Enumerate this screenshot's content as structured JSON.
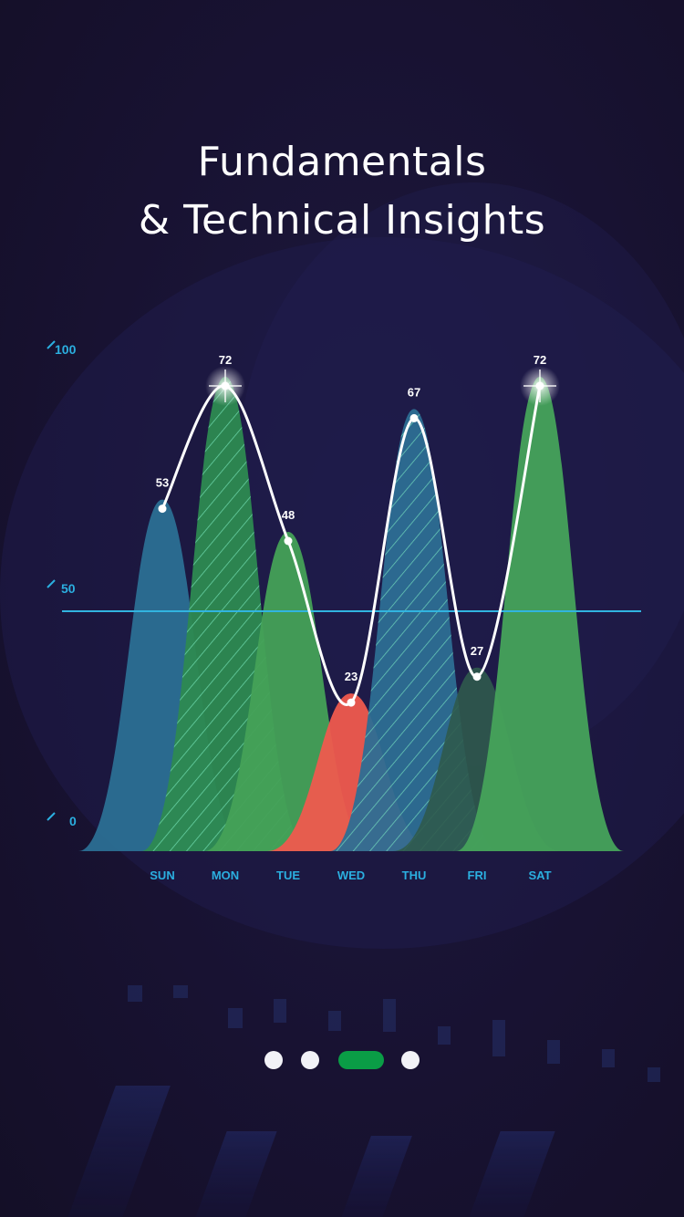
{
  "header": {
    "title_line1": "Fundamentals",
    "title_line2": "& Technical Insights"
  },
  "chart_data": {
    "type": "area",
    "categories": [
      "SUN",
      "MON",
      "TUE",
      "WED",
      "THU",
      "FRI",
      "SAT"
    ],
    "values": [
      53,
      72,
      48,
      23,
      67,
      27,
      72
    ],
    "y_tick_labels": [
      "100",
      "50",
      "0"
    ],
    "reference_line": 47,
    "colors": [
      "#2b6f94",
      "#2d8a51",
      "#44a157",
      "#ef5a4e",
      "#2d6e93",
      "#2f5a4c",
      "#46a35b"
    ],
    "hatched": [
      false,
      true,
      false,
      false,
      true,
      false,
      false
    ],
    "starred": [
      false,
      true,
      false,
      false,
      false,
      false,
      true
    ],
    "line_color": "#ffffff",
    "reference_color": "#31b4e0",
    "label_color": "#2bafe0",
    "grid": false
  },
  "pager": {
    "count": 4,
    "active_index": 2,
    "active_color": "#0a9d46",
    "inactive_color": "#f2f2f7"
  }
}
